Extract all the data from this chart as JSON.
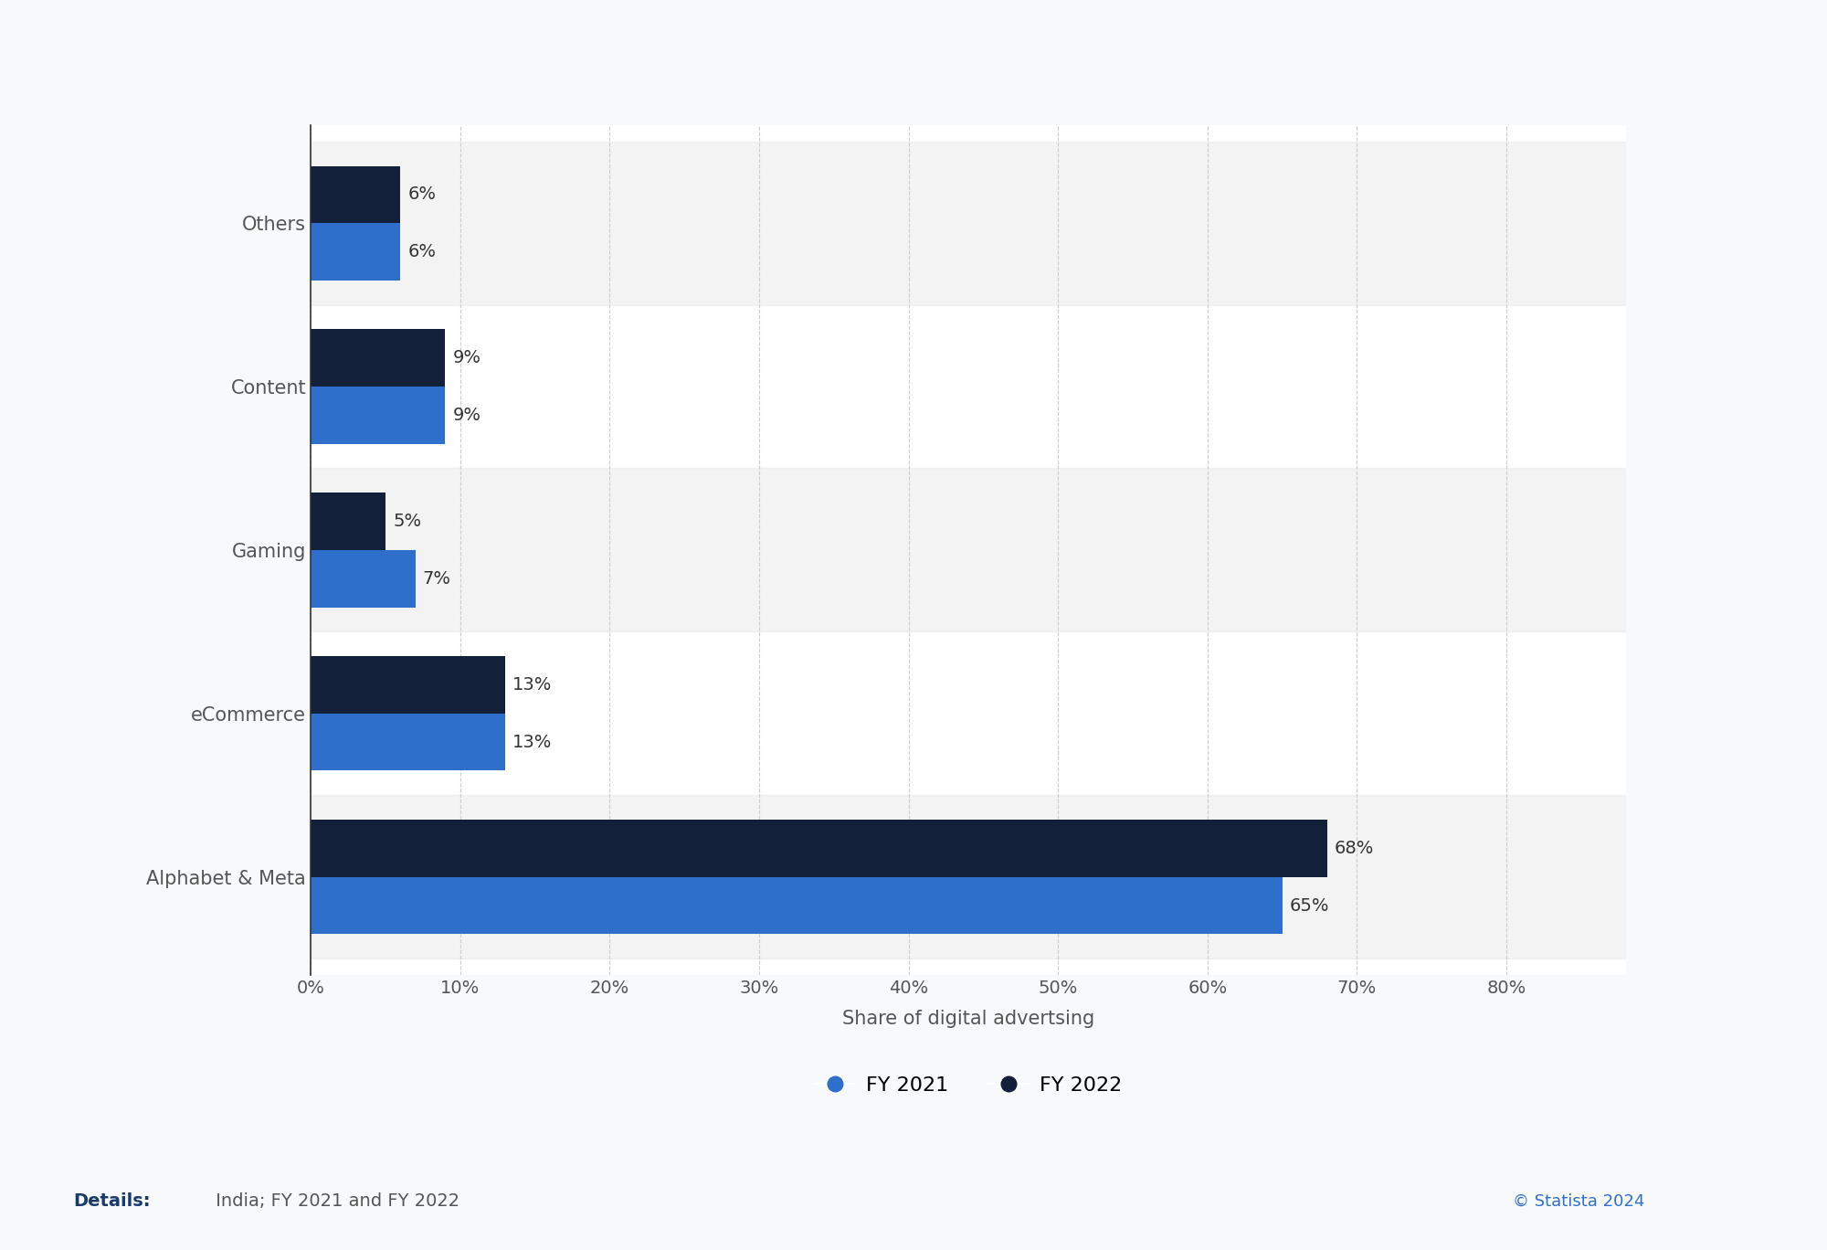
{
  "categories": [
    "Alphabet & Meta",
    "eCommerce",
    "Gaming",
    "Content",
    "Others"
  ],
  "fy2022_values": [
    68,
    13,
    5,
    9,
    6
  ],
  "fy2021_values": [
    65,
    13,
    7,
    9,
    6
  ],
  "fy2022_color": "#12203a",
  "fy2021_color": "#2f6fcc",
  "bar_height": 0.35,
  "xlabel": "Share of digital advertsing",
  "xlim": [
    0,
    88
  ],
  "xticks": [
    0,
    10,
    20,
    30,
    40,
    50,
    60,
    70,
    80
  ],
  "xtick_labels": [
    "0%",
    "10%",
    "20%",
    "30%",
    "40%",
    "50%",
    "60%",
    "70%",
    "80%"
  ],
  "legend_fy2021": "FY 2021",
  "legend_fy2022": "FY 2022",
  "background_color": "#f8f9fb",
  "plot_bg_color": "#ffffff",
  "label_fontsize": 15,
  "tick_fontsize": 14,
  "annotation_fontsize": 14,
  "details_text": "Details:",
  "details_content": " India; FY 2021 and FY 2022",
  "copyright_text": "© Statista 2024"
}
